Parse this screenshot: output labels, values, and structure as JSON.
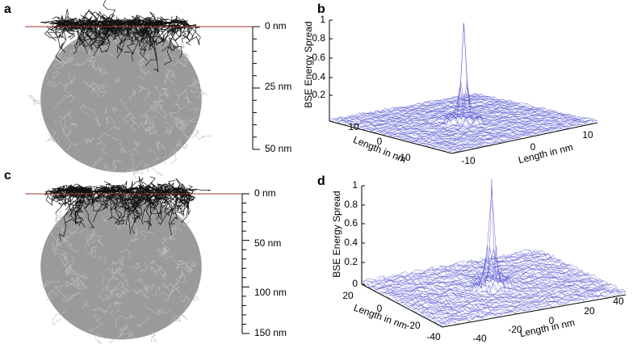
{
  "panels": [
    {
      "label": "a",
      "scale_labels": [
        "0 nm",
        "25 nm",
        "50 nm"
      ]
    },
    {
      "label": "b",
      "z_axis_label": "BSE Energy Spread",
      "z_ticks": [
        "1",
        "0.8",
        "0.6",
        "0.4",
        "0.2"
      ],
      "x_axis_label": "Length in nm",
      "x_ticks": [
        "10",
        "0",
        "-10"
      ],
      "y_axis_label": "Length in nm",
      "y_ticks": [
        "-10",
        "0",
        "10"
      ]
    },
    {
      "label": "c",
      "scale_labels": [
        "0 nm",
        "50 nm",
        "100 nm",
        "150 nm"
      ]
    },
    {
      "label": "d",
      "z_axis_label": "BSE Energy Spread",
      "z_ticks": [
        "1",
        "0.8",
        "0.6",
        "0.4",
        "0.2",
        "0"
      ],
      "x_axis_label": "Length in nm",
      "x_ticks": [
        "20",
        "0",
        "-20",
        "-40"
      ],
      "y_axis_label": "Length in nm",
      "y_ticks": [
        "-40",
        "-20",
        "0",
        "20",
        "40"
      ]
    }
  ]
}
